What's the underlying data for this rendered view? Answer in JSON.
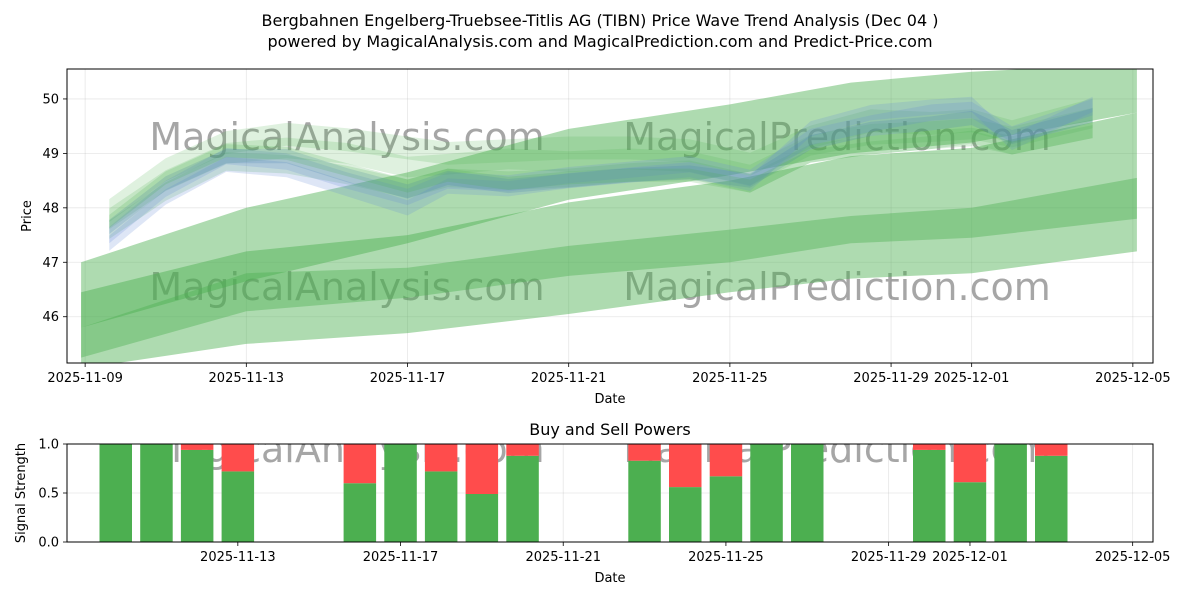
{
  "chart_data": [
    {
      "type": "area",
      "title_line1": "Bergbahnen Engelberg-Truebsee-Titlis AG (TIBN) Price Wave Trend Analysis (Dec 04 )",
      "title_line2": "powered by MagicalAnalysis.com and MagicalPrediction.com and Predict-Price.com",
      "xlabel": "Date",
      "ylabel": "Price",
      "ylim": [
        45.15,
        50.55
      ],
      "xlim_days": [
        -0.45,
        26.5
      ],
      "x_start_date": "2025-11-09",
      "x_ticks": [
        {
          "day": 0,
          "label": "2025-11-09"
        },
        {
          "day": 4,
          "label": "2025-11-13"
        },
        {
          "day": 8,
          "label": "2025-11-17"
        },
        {
          "day": 12,
          "label": "2025-11-21"
        },
        {
          "day": 16,
          "label": "2025-11-25"
        },
        {
          "day": 20,
          "label": "2025-11-29"
        },
        {
          "day": 22,
          "label": "2025-12-01"
        },
        {
          "day": 26,
          "label": "2025-12-05"
        }
      ],
      "y_ticks": [
        46,
        47,
        48,
        49,
        50
      ],
      "watermarks": [
        "MagicalAnalysis.com",
        "MagicalPrediction.com"
      ],
      "bands": [
        {
          "name": "long-trend-upper",
          "color": "#4caf50",
          "opacity": 0.45,
          "x": [
            -0.1,
            4,
            8,
            12,
            16,
            19,
            22,
            26.1
          ],
          "upper": [
            47.0,
            48.0,
            48.65,
            49.45,
            49.9,
            50.3,
            50.5,
            50.65
          ],
          "lower": [
            45.8,
            46.65,
            47.35,
            48.15,
            48.6,
            49.0,
            49.2,
            49.75
          ]
        },
        {
          "name": "long-trend-lower",
          "color": "#4caf50",
          "opacity": 0.45,
          "x": [
            -0.1,
            4,
            8,
            12,
            16,
            19,
            22,
            26.1
          ],
          "upper": [
            46.45,
            47.2,
            47.5,
            48.1,
            48.5,
            48.95,
            49.1,
            49.75
          ],
          "lower": [
            45.05,
            45.5,
            45.7,
            46.05,
            46.45,
            46.7,
            46.8,
            47.2
          ]
        },
        {
          "name": "base-channel",
          "color": "#4caf50",
          "opacity": 0.4,
          "x": [
            -0.1,
            4,
            8,
            12,
            16,
            19,
            22,
            26.1
          ],
          "upper": [
            45.8,
            46.8,
            46.9,
            47.3,
            47.6,
            47.85,
            48.0,
            48.55
          ],
          "lower": [
            45.25,
            46.1,
            46.35,
            46.75,
            47.0,
            47.35,
            47.45,
            47.8
          ]
        }
      ],
      "wave_series": [
        {
          "name": "wave-1",
          "color": "#4caf50",
          "opacity": 0.18,
          "width": 0.42,
          "x": [
            0.6,
            2,
            3.5,
            5,
            6.5,
            8,
            9,
            10.5,
            12,
            13.5,
            15,
            16.5,
            18,
            19.5,
            21,
            22,
            23,
            25
          ],
          "y": [
            47.95,
            48.7,
            49.2,
            49.35,
            49.25,
            49.1,
            49.0,
            49.05,
            49.1,
            49.1,
            49.05,
            48.8,
            49.3,
            49.6,
            49.55,
            49.6,
            49.4,
            49.8
          ]
        },
        {
          "name": "wave-2",
          "color": "#4caf50",
          "opacity": 0.18,
          "width": 0.38,
          "x": [
            0.6,
            2,
            3.5,
            5,
            6.5,
            8,
            9,
            10.5,
            12,
            13.5,
            15,
            16.5,
            18,
            19.5,
            21,
            22,
            23,
            25
          ],
          "y": [
            47.8,
            48.5,
            49.0,
            49.1,
            49.0,
            48.75,
            48.8,
            48.9,
            48.85,
            48.9,
            48.85,
            48.6,
            49.15,
            49.35,
            49.4,
            49.45,
            49.3,
            49.65
          ]
        },
        {
          "name": "wave-3",
          "color": "#4caf50",
          "opacity": 0.2,
          "width": 0.34,
          "x": [
            0.6,
            2,
            3.5,
            5,
            6.5,
            8,
            9,
            10.5,
            12,
            13.5,
            15,
            16.5,
            18,
            19.5,
            21,
            22,
            23,
            25
          ],
          "y": [
            47.6,
            48.3,
            48.85,
            48.8,
            48.6,
            48.35,
            48.55,
            48.5,
            48.55,
            48.65,
            48.7,
            48.45,
            49.0,
            49.15,
            49.25,
            49.3,
            49.15,
            49.45
          ]
        },
        {
          "name": "wave-4",
          "color": "#6b8fd6",
          "opacity": 0.22,
          "width": 0.3,
          "x": [
            0.6,
            2,
            3.5,
            5,
            6.5,
            8,
            9,
            10.5,
            12,
            13.5,
            15,
            16.5,
            18,
            19.5,
            21,
            22,
            23,
            25
          ],
          "y": [
            47.5,
            48.35,
            48.95,
            48.85,
            48.5,
            48.2,
            48.5,
            48.45,
            48.6,
            48.7,
            48.8,
            48.55,
            49.3,
            49.55,
            49.75,
            49.8,
            49.35,
            49.85
          ]
        },
        {
          "name": "wave-5",
          "color": "#6b8fd6",
          "opacity": 0.22,
          "width": 0.28,
          "x": [
            0.6,
            2,
            3.5,
            5,
            6.5,
            8,
            9,
            10.5,
            12,
            13.5,
            15,
            16.5,
            18,
            19.5,
            21,
            22,
            23,
            25
          ],
          "y": [
            47.35,
            48.2,
            48.8,
            48.7,
            48.35,
            48.0,
            48.4,
            48.35,
            48.5,
            48.6,
            48.7,
            48.45,
            49.45,
            49.75,
            49.85,
            49.9,
            49.2,
            49.9
          ]
        },
        {
          "name": "wave-6",
          "color": "#4a7fb0",
          "opacity": 0.22,
          "width": 0.26,
          "x": [
            0.6,
            2,
            3.5,
            5,
            6.5,
            8,
            9,
            10.5,
            12,
            13.5,
            15,
            16.5,
            18,
            19.5,
            21,
            22,
            23,
            25
          ],
          "y": [
            47.65,
            48.45,
            48.95,
            48.95,
            48.6,
            48.3,
            48.55,
            48.4,
            48.5,
            48.6,
            48.65,
            48.5,
            49.2,
            49.45,
            49.55,
            49.65,
            49.3,
            49.7
          ]
        },
        {
          "name": "wave-7",
          "color": "#4caf50",
          "opacity": 0.2,
          "width": 0.24,
          "x": [
            0.6,
            2,
            3.5,
            5,
            6.5,
            8,
            9,
            10.5,
            12,
            13.5,
            15,
            16.5,
            18,
            19.5,
            21,
            22,
            23,
            25
          ],
          "y": [
            47.75,
            48.55,
            49.05,
            49.0,
            48.7,
            48.4,
            48.6,
            48.45,
            48.55,
            48.6,
            48.6,
            48.4,
            48.95,
            49.1,
            49.2,
            49.3,
            49.1,
            49.4
          ]
        }
      ]
    },
    {
      "type": "bar",
      "title": "Buy and Sell Powers",
      "xlabel": "Date",
      "ylabel": "Signal Strength",
      "ylim": [
        0,
        1
      ],
      "xlim_days": [
        -0.2,
        26.5
      ],
      "x_start_date": "2025-11-09",
      "x_ticks": [
        {
          "day": 4,
          "label": "2025-11-13"
        },
        {
          "day": 8,
          "label": "2025-11-17"
        },
        {
          "day": 12,
          "label": "2025-11-21"
        },
        {
          "day": 16,
          "label": "2025-11-25"
        },
        {
          "day": 20,
          "label": "2025-11-29"
        },
        {
          "day": 22,
          "label": "2025-12-01"
        },
        {
          "day": 26,
          "label": "2025-12-05"
        }
      ],
      "y_ticks": [
        {
          "value": 0,
          "label": "0.0"
        },
        {
          "value": 0.5,
          "label": "0.5"
        },
        {
          "value": 1,
          "label": "1.0"
        }
      ],
      "buy_color": "#4caf50",
      "sell_color": "#ff4c4c",
      "watermarks": [
        "MagicalAnalysis.com",
        "MagicalPrediction.com"
      ],
      "bars": [
        {
          "day": 1,
          "buy": 1.0,
          "sell": 0.0
        },
        {
          "day": 2,
          "buy": 1.0,
          "sell": 0.0
        },
        {
          "day": 3,
          "buy": 0.94,
          "sell": 0.06
        },
        {
          "day": 4,
          "buy": 0.72,
          "sell": 0.28
        },
        {
          "day": 7,
          "buy": 0.6,
          "sell": 0.4
        },
        {
          "day": 8,
          "buy": 1.0,
          "sell": 0.0
        },
        {
          "day": 9,
          "buy": 0.72,
          "sell": 0.28
        },
        {
          "day": 10,
          "buy": 0.49,
          "sell": 0.51
        },
        {
          "day": 11,
          "buy": 0.88,
          "sell": 0.12
        },
        {
          "day": 14,
          "buy": 0.83,
          "sell": 0.17
        },
        {
          "day": 15,
          "buy": 0.56,
          "sell": 0.44
        },
        {
          "day": 16,
          "buy": 0.67,
          "sell": 0.33
        },
        {
          "day": 17,
          "buy": 1.0,
          "sell": 0.0
        },
        {
          "day": 18,
          "buy": 1.0,
          "sell": 0.0
        },
        {
          "day": 21,
          "buy": 0.94,
          "sell": 0.06
        },
        {
          "day": 22,
          "buy": 0.61,
          "sell": 0.39
        },
        {
          "day": 23,
          "buy": 1.0,
          "sell": 0.0
        },
        {
          "day": 24,
          "buy": 0.88,
          "sell": 0.12
        }
      ]
    }
  ]
}
